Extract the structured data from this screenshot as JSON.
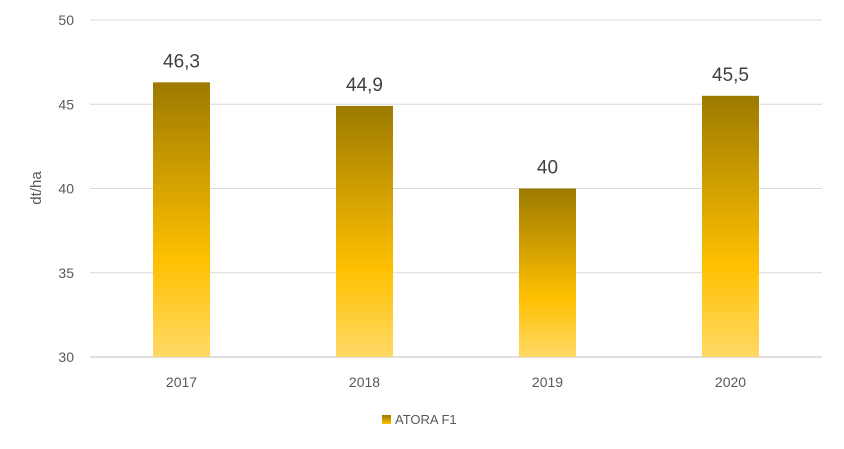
{
  "chart_data": {
    "type": "bar",
    "categories": [
      "2017",
      "2018",
      "2019",
      "2020"
    ],
    "series": [
      {
        "name": "ATORA F1",
        "values": [
          46.3,
          44.9,
          40,
          45.5
        ]
      }
    ],
    "data_labels": [
      "46,3",
      "44,9",
      "40",
      "45,5"
    ],
    "ylabel": "dt/ha",
    "xlabel": "",
    "ylim": [
      30,
      50
    ],
    "yticks": [
      30,
      35,
      40,
      45,
      50
    ],
    "grid": true,
    "legend": "bottom",
    "colors": {
      "bar_top": "#9c7a00",
      "bar_mid": "#ffc000",
      "bar_bottom": "#ffd966",
      "grid": "#d9d9d9"
    }
  }
}
